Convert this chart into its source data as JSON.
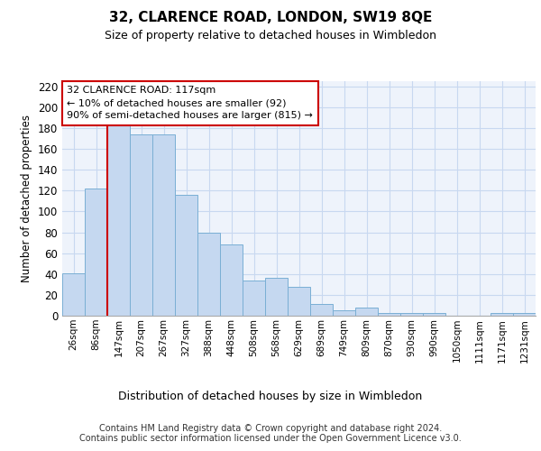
{
  "title": "32, CLARENCE ROAD, LONDON, SW19 8QE",
  "subtitle": "Size of property relative to detached houses in Wimbledon",
  "xlabel": "Distribution of detached houses by size in Wimbledon",
  "ylabel": "Number of detached properties",
  "categories": [
    "26sqm",
    "86sqm",
    "147sqm",
    "207sqm",
    "267sqm",
    "327sqm",
    "388sqm",
    "448sqm",
    "508sqm",
    "568sqm",
    "629sqm",
    "689sqm",
    "749sqm",
    "809sqm",
    "870sqm",
    "930sqm",
    "990sqm",
    "1050sqm",
    "1111sqm",
    "1171sqm",
    "1231sqm"
  ],
  "values": [
    41,
    122,
    184,
    174,
    174,
    116,
    80,
    68,
    34,
    36,
    28,
    11,
    5,
    8,
    3,
    3,
    3,
    0,
    0,
    3,
    3
  ],
  "bar_color": "#c5d8f0",
  "bar_edge_color": "#7aafd4",
  "background_color": "#eef3fb",
  "grid_color": "#c8d8f0",
  "vline_color": "#cc0000",
  "annotation_box_text": "32 CLARENCE ROAD: 117sqm\n← 10% of detached houses are smaller (92)\n90% of semi-detached houses are larger (815) →",
  "annotation_box_color": "#ffffff",
  "annotation_box_edge_color": "#cc0000",
  "ylim": [
    0,
    225
  ],
  "yticks": [
    0,
    20,
    40,
    60,
    80,
    100,
    120,
    140,
    160,
    180,
    200,
    220
  ],
  "footer_line1": "Contains HM Land Registry data © Crown copyright and database right 2024.",
  "footer_line2": "Contains public sector information licensed under the Open Government Licence v3.0."
}
